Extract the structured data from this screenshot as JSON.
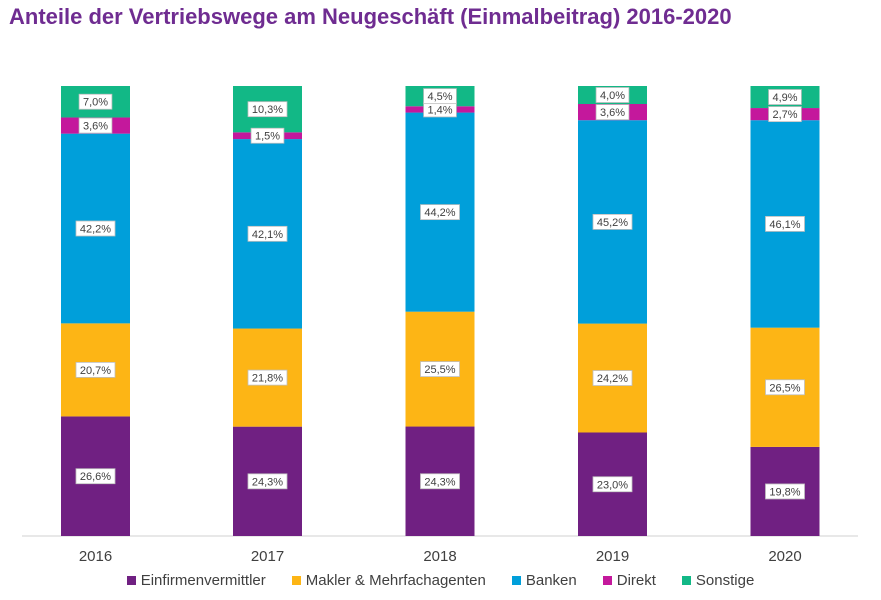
{
  "title": "Anteile der Vertriebswege am Neugeschäft (Einmalbeitrag) 2016-2020",
  "chart_data": {
    "type": "bar",
    "stacked": true,
    "title": "Anteile der Vertriebswege am Neugeschäft (Einmalbeitrag) 2016-2020",
    "xlabel": "",
    "ylabel": "",
    "ylim": [
      0,
      100
    ],
    "grid": false,
    "legend_position": "bottom",
    "categories": [
      "2016",
      "2017",
      "2018",
      "2019",
      "2020"
    ],
    "series": [
      {
        "name": "Einfirmenvermittler",
        "color": "#702082",
        "values": [
          26.6,
          24.3,
          24.3,
          23.0,
          19.8
        ],
        "labels": [
          "26,6%",
          "24,3%",
          "24,3%",
          "23,0%",
          "19,8%"
        ]
      },
      {
        "name": "Makler & Mehrfachagenten",
        "color": "#fdb515",
        "values": [
          20.7,
          21.8,
          25.5,
          24.2,
          26.5
        ],
        "labels": [
          "20,7%",
          "21,8%",
          "25,5%",
          "24,2%",
          "26,5%"
        ]
      },
      {
        "name": "Banken",
        "color": "#009fda",
        "values": [
          42.2,
          42.1,
          44.2,
          45.2,
          46.1
        ],
        "labels": [
          "42,2%",
          "42,1%",
          "44,2%",
          "45,2%",
          "46,1%"
        ]
      },
      {
        "name": "Direkt",
        "color": "#c4189c",
        "values": [
          3.6,
          1.5,
          1.4,
          3.6,
          2.7
        ],
        "labels": [
          "3,6%",
          "1,5%",
          "1,4%",
          "3,6%",
          "2,7%"
        ]
      },
      {
        "name": "Sonstige",
        "color": "#12b886",
        "values": [
          7.0,
          10.3,
          4.5,
          4.0,
          4.9
        ],
        "labels": [
          "7,0%",
          "10,3%",
          "4,5%",
          "4,0%",
          "4,9%"
        ]
      }
    ]
  }
}
